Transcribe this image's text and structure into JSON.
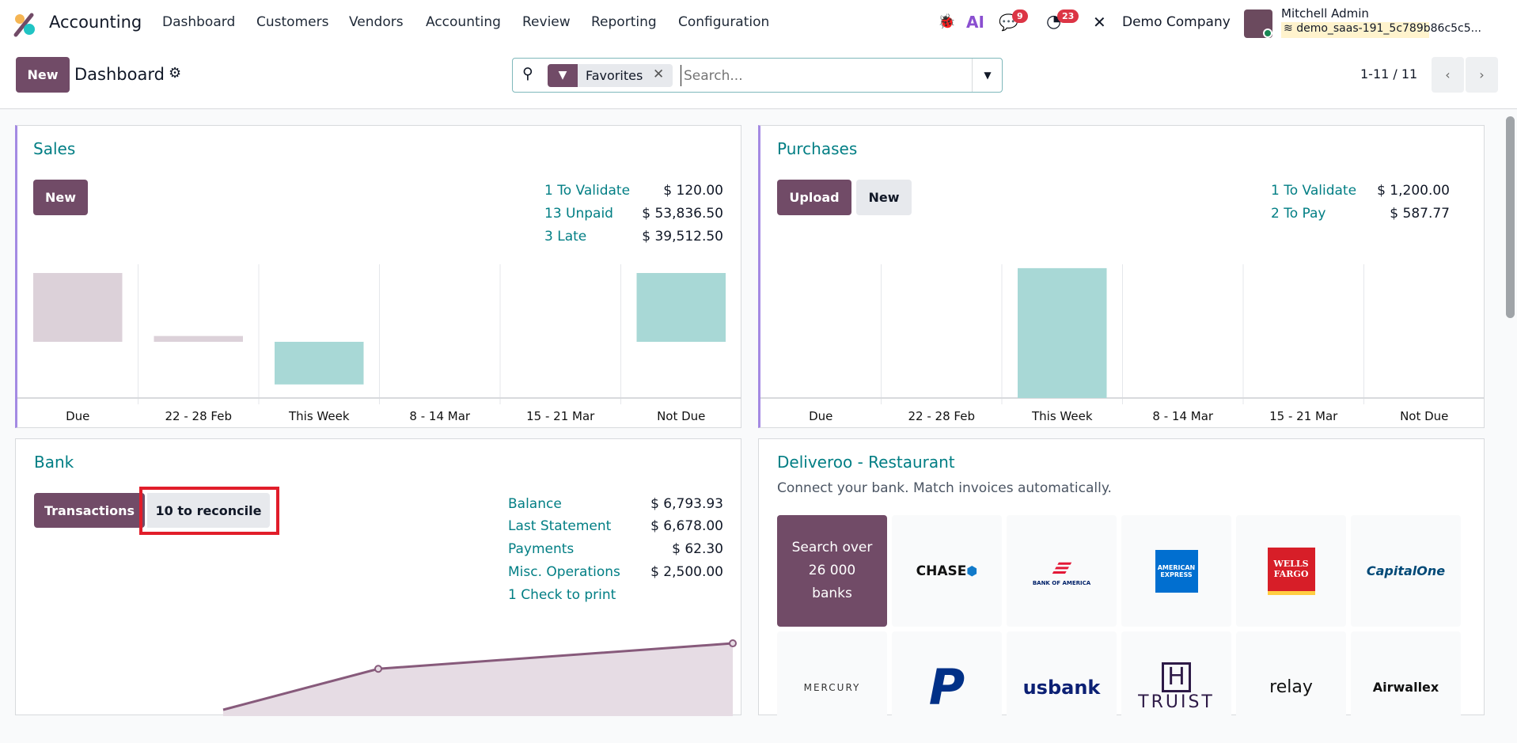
{
  "navbar": {
    "app_name": "Accounting",
    "menu": [
      "Dashboard",
      "Customers",
      "Vendors",
      "Accounting",
      "Review",
      "Reporting",
      "Configuration"
    ],
    "messages_count": "9",
    "activities_count": "23",
    "company": "Demo Company",
    "user_name": "Mitchell Admin",
    "database": "demo_saas-191_5c789b86c5c5..."
  },
  "control_panel": {
    "new_label": "New",
    "title": "Dashboard",
    "filter_facet": "Favorites",
    "search_placeholder": "Search...",
    "pager": "1-11 / 11"
  },
  "sales": {
    "title": "Sales",
    "new_label": "New",
    "stats": [
      {
        "label": "1 To Validate",
        "value": "$ 120.00"
      },
      {
        "label": "13 Unpaid",
        "value": "$ 53,836.50"
      },
      {
        "label": "3 Late",
        "value": "$ 39,512.50"
      }
    ]
  },
  "purchases": {
    "title": "Purchases",
    "upload_label": "Upload",
    "new_label": "New",
    "stats": [
      {
        "label": "1 To Validate",
        "value": "$ 1,200.00"
      },
      {
        "label": "2 To Pay",
        "value": "$ 587.77"
      }
    ]
  },
  "bank": {
    "title": "Bank",
    "transactions_label": "Transactions",
    "reconcile_label": "10 to reconcile",
    "stats": [
      {
        "label": "Balance",
        "value": "$ 6,793.93"
      },
      {
        "label": "Last Statement",
        "value": "$ 6,678.00"
      },
      {
        "label": "Payments",
        "value": "$ 62.30"
      },
      {
        "label": "Misc. Operations",
        "value": "$ 2,500.00"
      },
      {
        "label": "1 Check to print",
        "value": ""
      }
    ]
  },
  "deliveroo": {
    "title": "Deliveroo - Restaurant",
    "subtitle": "Connect your bank. Match invoices automatically.",
    "search_tile": [
      "Search over",
      "26 000",
      "banks"
    ],
    "banks": [
      "CHASE",
      "BANK OF AMERICA",
      "AMERICAN EXPRESS",
      "WELLS FARGO",
      "CapitalOne",
      "MERCURY",
      "PayPal",
      "usbank",
      "TRUIST",
      "relay",
      "Airwallex"
    ]
  },
  "colors": {
    "primary": "#714b67",
    "teal": "#017e84",
    "past_bar": "#dcd1d9",
    "future_bar": "#a8d8d6",
    "highlight": "#e11d2a"
  },
  "chart_data": [
    {
      "type": "bar",
      "categories": [
        "Due",
        "22 - 28 Feb",
        "This Week",
        "8 - 14 Mar",
        "15 - 21 Mar",
        "Not Due"
      ],
      "values": [
        71,
        6,
        -44,
        0,
        0,
        71
      ],
      "ylim": [
        -58,
        80
      ]
    },
    {
      "type": "bar",
      "categories": [
        "Due",
        "22 - 28 Feb",
        "This Week",
        "8 - 14 Mar",
        "15 - 21 Mar",
        "Not Due"
      ],
      "values": [
        0,
        0,
        134,
        0,
        0,
        0
      ],
      "ylim": [
        0,
        138
      ]
    },
    {
      "type": "area",
      "values": [
        0,
        45,
        73
      ]
    }
  ]
}
